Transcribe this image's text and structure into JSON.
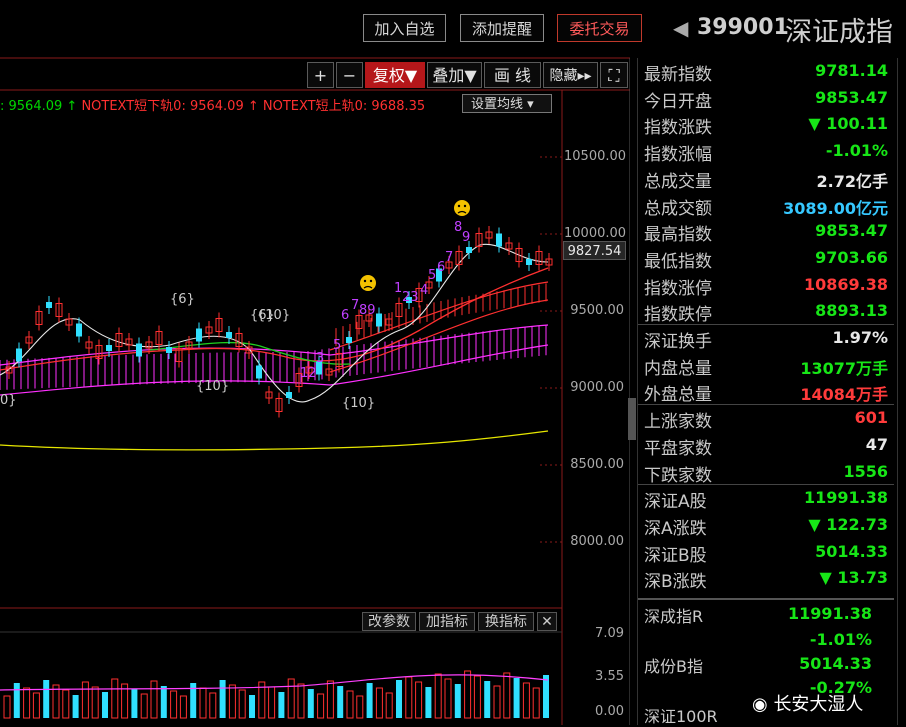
{
  "header": {
    "buttons": [
      "加入自选",
      "添加提醒",
      "委托交易"
    ],
    "code": "399001",
    "name": "深证成指"
  },
  "toolbar": {
    "buttons": [
      "+",
      "−",
      "复权▼",
      "叠加▼",
      "画 线",
      "隐藏▸▸",
      "⛶"
    ],
    "set_ma": "设置均线 ▾"
  },
  "legend": {
    "item1": ": 9564.09 ↑",
    "item2": "NOTEXT短下轨0: 9564.09 ↑",
    "item3": "NOTEXT短上轨0: 9688.35"
  },
  "yaxis": {
    "ticks": [
      "10500.00",
      "10000.00",
      "9500.00",
      "9000.00",
      "8500.00",
      "8000.00"
    ],
    "current": "9827.54",
    "vol_ticks": [
      "7.09",
      "3.55",
      "0.00"
    ]
  },
  "annotations": {
    "braces": [
      "{6}",
      "{6}",
      "{10}",
      "{10}",
      "{10}",
      "0}"
    ],
    "counts": [
      "12",
      "3",
      "5",
      "6",
      "7",
      "89",
      "1",
      "23",
      "4",
      "5",
      "6",
      "7",
      "8",
      "9"
    ]
  },
  "indicator_buttons": [
    "改参数",
    "加指标",
    "换指标",
    "✕"
  ],
  "panel": {
    "rows": [
      {
        "label": "最新指数",
        "value": "9781.14",
        "color": "green"
      },
      {
        "label": "今日开盘",
        "value": "9853.47",
        "color": "green"
      },
      {
        "label": "指数涨跌",
        "value": "▼ 100.11",
        "color": "green"
      },
      {
        "label": "指数涨幅",
        "value": "-1.01%",
        "color": "green"
      },
      {
        "label": "总成交量",
        "value": "2.72亿手",
        "color": "white"
      },
      {
        "label": "总成交额",
        "value": "3089.00亿元",
        "color": "cyan"
      },
      {
        "label": "最高指数",
        "value": "9853.47",
        "color": "green"
      },
      {
        "label": "最低指数",
        "value": "9703.66",
        "color": "green"
      },
      {
        "label": "指数涨停",
        "value": "10869.38",
        "color": "red"
      },
      {
        "label": "指数跌停",
        "value": "8893.13",
        "color": "green"
      },
      {
        "label": "深证换手",
        "value": "1.97%",
        "color": "white"
      },
      {
        "label": "内盘总量",
        "value": "13077万手",
        "color": "green"
      },
      {
        "label": "外盘总量",
        "value": "14084万手",
        "color": "red"
      },
      {
        "label": "上涨家数",
        "value": "601",
        "color": "red"
      },
      {
        "label": "平盘家数",
        "value": "47",
        "color": "white"
      },
      {
        "label": "下跌家数",
        "value": "1556",
        "color": "green"
      },
      {
        "label": "深证A股",
        "value": "11991.38",
        "color": "green"
      },
      {
        "label": "深A涨跌",
        "value": "▼ 122.73",
        "color": "green"
      },
      {
        "label": "深证B股",
        "value": "5014.33",
        "color": "green"
      },
      {
        "label": "深B涨跌",
        "value": "▼ 13.73",
        "color": "green"
      }
    ],
    "bottom": {
      "r1_label": "深成指R",
      "r1_value": "11991.38",
      "r2_value": "-1.01%",
      "r3_label": "成份B指",
      "r3_value": "5014.33",
      "r4_value": "-0.27%",
      "r5_label": "深证100R"
    }
  },
  "watermark": "长安大湿人"
}
